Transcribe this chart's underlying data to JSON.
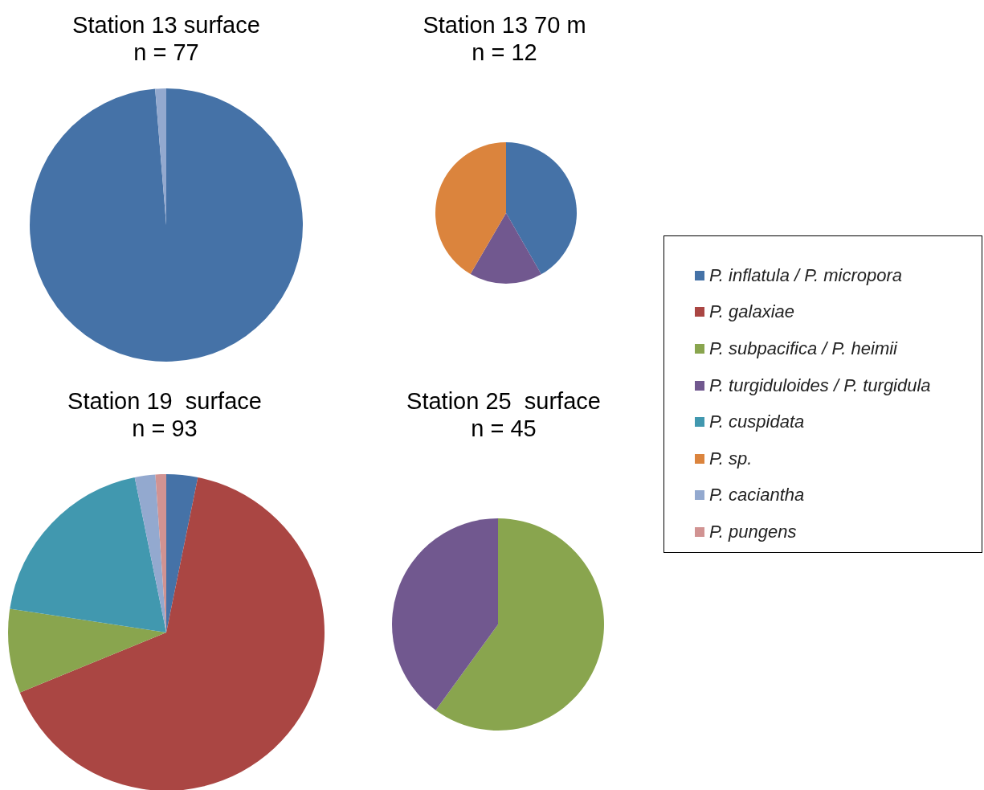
{
  "chart_data": [
    {
      "type": "pie",
      "title": "Station 13 surface",
      "subtitle": "n = 77",
      "legend": "right",
      "categories": [
        "P. inflatula / P. micropora",
        "P. galaxiae",
        "P. subpacifica / P. heimii",
        "P. turgiduloides / P. turgidula",
        "P. cuspidata",
        "P. sp.",
        "P. caciantha",
        "P. pungens"
      ],
      "values": [
        98.7,
        0,
        0,
        0,
        0,
        0,
        1.3,
        0
      ],
      "colors": [
        "#4572a7",
        "#aa4643",
        "#89a54e",
        "#71588f",
        "#4198af",
        "#db843d",
        "#93a9cf",
        "#d19392"
      ]
    },
    {
      "type": "pie",
      "title": "Station 13 70 m",
      "subtitle": "n = 12",
      "categories": [
        null,
        null,
        null,
        null,
        null,
        null,
        null,
        null
      ],
      "values": [
        41.7,
        0,
        0,
        16.7,
        0,
        41.6,
        0,
        0
      ],
      "colors": [
        "#4572a7",
        "#aa4643",
        "#89a54e",
        "#71588f",
        "#4198af",
        "#db843d",
        "#93a9cf",
        "#d19392"
      ]
    },
    {
      "type": "pie",
      "title": "Station 19  surface",
      "subtitle": "n = 93",
      "categories": [
        null,
        null,
        null,
        null,
        null,
        null,
        null,
        null
      ],
      "values": [
        3.2,
        65.6,
        8.6,
        0,
        19.4,
        0,
        2.1,
        1.1
      ],
      "colors": [
        "#4572a7",
        "#aa4643",
        "#89a54e",
        "#71588f",
        "#4198af",
        "#db843d",
        "#93a9cf",
        "#d19392"
      ]
    },
    {
      "type": "pie",
      "title": "Station 25  surface",
      "subtitle": "n = 45",
      "categories": [
        null,
        null,
        null,
        null,
        null,
        null,
        null,
        null
      ],
      "values": [
        0,
        0,
        60,
        40,
        0,
        0,
        0,
        0
      ],
      "colors": [
        "#4572a7",
        "#aa4643",
        "#89a54e",
        "#71588f",
        "#4198af",
        "#db843d",
        "#93a9cf",
        "#d19392"
      ]
    }
  ]
}
